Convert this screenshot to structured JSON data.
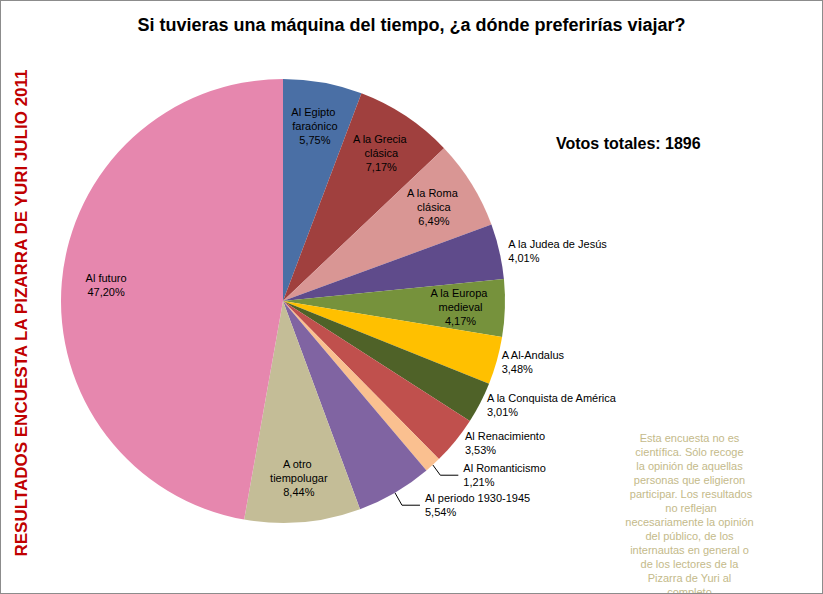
{
  "chart_data": {
    "type": "pie",
    "title": "Si tuvieras una máquina del tiempo, ¿a dónde preferirías viajar?",
    "categories": [
      "Al Egipto faraónico",
      "A la Grecia clásica",
      "A la Roma clásica",
      "A la Judea de Jesús",
      "A la Europa medieval",
      "A Al-Andalus",
      "A la Conquista de América",
      "Al Renacimiento",
      "Al Romanticismo",
      "Al periodo 1930-1945",
      "A otro tiempolugar",
      "Al futuro"
    ],
    "values": [
      5.75,
      7.17,
      6.49,
      4.01,
      4.17,
      3.48,
      3.01,
      3.53,
      1.21,
      5.54,
      8.44,
      47.2
    ],
    "value_labels": [
      "5,75%",
      "7,17%",
      "6,49%",
      "4,01%",
      "4,17%",
      "3,48%",
      "3,01%",
      "3,53%",
      "1,21%",
      "5,54%",
      "8,44%",
      "47,20%"
    ],
    "colors": [
      "#4A6FA5",
      "#A0403E",
      "#D99694",
      "#5F4B8B",
      "#76923C",
      "#FFC000",
      "#4F6228",
      "#C0504D",
      "#FAC090",
      "#8064A2",
      "#C4BD97",
      "#E687AE"
    ],
    "data_labels": true,
    "annotations": [
      "RESULTADOS ENCUESTA LA PIZARRA DE YURI JULIO 2011",
      "Votos totales: 1896",
      "Esta encuesta no es científica. Sólo recoge la opinión de aquellas personas que eligieron participar. Los resultados no reflejan necesariamente la opinión del público, de los internautas en general o de los lectores de la Pizarra de Yuri al completo."
    ]
  }
}
